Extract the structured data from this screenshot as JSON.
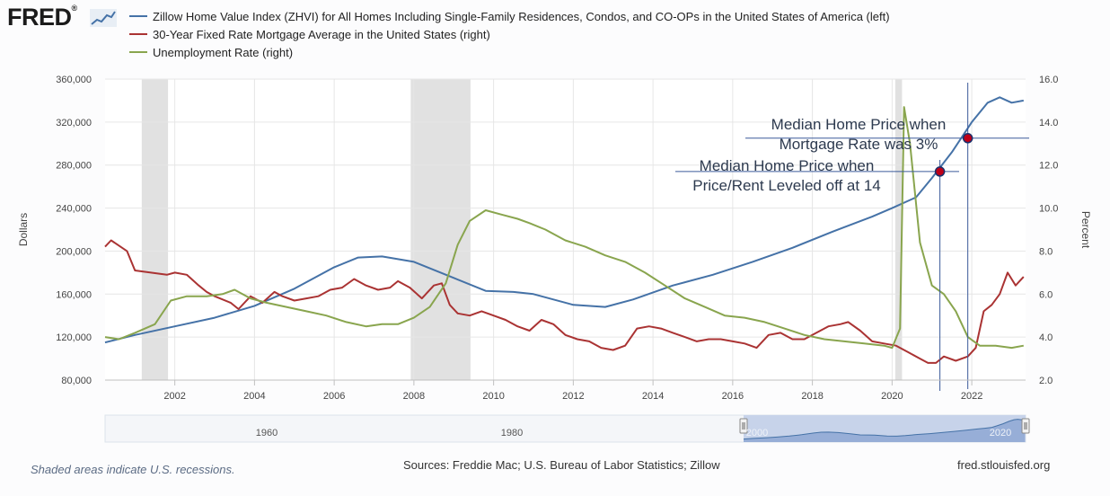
{
  "brand": {
    "name": "FRED",
    "registered": "®"
  },
  "legend": [
    {
      "label": "Zillow Home Value Index (ZHVI) for All Homes Including Single-Family Residences, Condos, and CO-OPs in the United States of America (left)",
      "color": "#4572a7"
    },
    {
      "label": "30-Year Fixed Rate Mortgage Average in the United States (right)",
      "color": "#aa3333"
    },
    {
      "label": "Unemployment Rate (right)",
      "color": "#89a54e"
    }
  ],
  "chart_data": {
    "type": "line",
    "left_axis": {
      "label": "Dollars",
      "ylim": [
        80000,
        360000
      ],
      "ticks": [
        "80,000",
        "120,000",
        "160,000",
        "200,000",
        "240,000",
        "280,000",
        "320,000",
        "360,000"
      ]
    },
    "right_axis": {
      "label": "Percent",
      "ylim": [
        2.0,
        16.0
      ],
      "ticks": [
        "2.0",
        "4.0",
        "6.0",
        "8.0",
        "10.0",
        "12.0",
        "14.0",
        "16.0"
      ]
    },
    "xlim": [
      2000.25,
      2023.35
    ],
    "x_ticks": [
      "2002",
      "2004",
      "2006",
      "2008",
      "2010",
      "2012",
      "2014",
      "2016",
      "2018",
      "2020",
      "2022"
    ],
    "recessions": [
      [
        2001.17,
        2001.83
      ],
      [
        2007.92,
        2009.42
      ],
      [
        2020.08,
        2020.25
      ]
    ],
    "series": [
      {
        "name": "ZHVI",
        "axis": "left",
        "color": "#4572a7",
        "x": [
          2000.25,
          2001,
          2002,
          2003,
          2004,
          2005,
          2006,
          2006.6,
          2007.2,
          2008,
          2009,
          2009.8,
          2010.5,
          2011,
          2012,
          2012.8,
          2013.5,
          2014.5,
          2015.5,
          2016.5,
          2017.5,
          2018.5,
          2019.5,
          2020.0,
          2020.6,
          2021.0,
          2021.5,
          2022.0,
          2022.4,
          2022.7,
          2023.0,
          2023.3
        ],
        "values": [
          115000,
          122000,
          130000,
          138000,
          149000,
          165000,
          185000,
          194000,
          195000,
          190000,
          175000,
          163000,
          162000,
          160000,
          150000,
          148000,
          155000,
          168000,
          178000,
          190000,
          203000,
          218000,
          232000,
          240000,
          250000,
          268000,
          292000,
          320000,
          338000,
          343000,
          338000,
          340000
        ]
      },
      {
        "name": "30-Year Fixed Mortgage",
        "axis": "right",
        "color": "#aa3333",
        "x": [
          2000.25,
          2000.4,
          2000.8,
          2001.0,
          2001.4,
          2001.8,
          2002.0,
          2002.3,
          2002.6,
          2002.8,
          2003.0,
          2003.4,
          2003.6,
          2003.9,
          2004.2,
          2004.5,
          2004.7,
          2005.0,
          2005.3,
          2005.6,
          2005.9,
          2006.2,
          2006.5,
          2006.8,
          2007.1,
          2007.4,
          2007.6,
          2007.9,
          2008.2,
          2008.5,
          2008.7,
          2008.9,
          2009.1,
          2009.4,
          2009.7,
          2010.0,
          2010.3,
          2010.6,
          2010.9,
          2011.2,
          2011.5,
          2011.8,
          2012.1,
          2012.4,
          2012.7,
          2013.0,
          2013.3,
          2013.6,
          2013.9,
          2014.2,
          2014.5,
          2014.8,
          2015.1,
          2015.4,
          2015.7,
          2016.0,
          2016.3,
          2016.6,
          2016.9,
          2017.2,
          2017.5,
          2017.8,
          2018.1,
          2018.4,
          2018.7,
          2018.9,
          2019.2,
          2019.5,
          2019.8,
          2020.1,
          2020.4,
          2020.7,
          2020.9,
          2021.1,
          2021.3,
          2021.6,
          2021.9,
          2022.1,
          2022.3,
          2022.5,
          2022.7,
          2022.9,
          2023.1,
          2023.3
        ],
        "values": [
          8.2,
          8.5,
          8.0,
          7.1,
          7.0,
          6.9,
          7.0,
          6.9,
          6.4,
          6.1,
          5.9,
          5.6,
          5.3,
          5.9,
          5.6,
          6.1,
          5.9,
          5.7,
          5.8,
          5.9,
          6.2,
          6.3,
          6.7,
          6.4,
          6.2,
          6.3,
          6.6,
          6.3,
          5.8,
          6.4,
          6.5,
          5.5,
          5.1,
          5.0,
          5.2,
          5.0,
          4.8,
          4.5,
          4.3,
          4.8,
          4.6,
          4.1,
          3.9,
          3.8,
          3.5,
          3.4,
          3.6,
          4.4,
          4.5,
          4.4,
          4.2,
          4.0,
          3.8,
          3.9,
          3.9,
          3.8,
          3.7,
          3.5,
          4.1,
          4.2,
          3.9,
          3.9,
          4.2,
          4.5,
          4.6,
          4.7,
          4.3,
          3.8,
          3.7,
          3.6,
          3.3,
          3.0,
          2.8,
          2.8,
          3.1,
          2.9,
          3.1,
          3.5,
          5.2,
          5.5,
          6.0,
          7.0,
          6.4,
          6.8
        ]
      },
      {
        "name": "Unemployment Rate",
        "axis": "right",
        "color": "#89a54e",
        "x": [
          2000.25,
          2000.6,
          2001.0,
          2001.5,
          2001.9,
          2002.3,
          2002.8,
          2003.2,
          2003.5,
          2003.9,
          2004.3,
          2004.8,
          2005.3,
          2005.8,
          2006.3,
          2006.8,
          2007.2,
          2007.6,
          2008.0,
          2008.4,
          2008.8,
          2009.1,
          2009.4,
          2009.8,
          2010.2,
          2010.6,
          2010.9,
          2011.3,
          2011.8,
          2012.3,
          2012.8,
          2013.3,
          2013.8,
          2014.3,
          2014.8,
          2015.3,
          2015.8,
          2016.3,
          2016.8,
          2017.3,
          2017.8,
          2018.3,
          2018.8,
          2019.3,
          2019.8,
          2020.0,
          2020.2,
          2020.3,
          2020.45,
          2020.7,
          2021.0,
          2021.3,
          2021.6,
          2021.9,
          2022.2,
          2022.6,
          2023.0,
          2023.3
        ],
        "values": [
          4.0,
          3.9,
          4.2,
          4.6,
          5.7,
          5.9,
          5.9,
          6.0,
          6.2,
          5.8,
          5.6,
          5.4,
          5.2,
          5.0,
          4.7,
          4.5,
          4.6,
          4.6,
          4.9,
          5.4,
          6.5,
          8.3,
          9.4,
          9.9,
          9.7,
          9.5,
          9.3,
          9.0,
          8.5,
          8.2,
          7.8,
          7.5,
          7.0,
          6.4,
          5.8,
          5.4,
          5.0,
          4.9,
          4.7,
          4.4,
          4.1,
          3.9,
          3.8,
          3.7,
          3.6,
          3.5,
          4.4,
          14.7,
          13.0,
          8.4,
          6.4,
          6.0,
          5.2,
          4.0,
          3.6,
          3.6,
          3.5,
          3.6
        ]
      }
    ],
    "navigator": {
      "labels": [
        "1960",
        "1980",
        "2000",
        "2020"
      ]
    }
  },
  "annotations": [
    {
      "text_line1": "Median Home Price when",
      "text_line2": "Mortgage Rate was 3%",
      "marker_x": 2021.9,
      "marker_y": 305000
    },
    {
      "text_line1": "Median Home Price when",
      "text_line2": "Price/Rent Leveled off at 14",
      "marker_x": 2021.2,
      "marker_y": 274000
    }
  ],
  "footer": {
    "note": "Shaded areas indicate U.S. recessions.",
    "sources": "Sources: Freddie Mac; U.S. Bureau of Labor Statistics; Zillow",
    "site": "fred.stlouisfed.org"
  }
}
